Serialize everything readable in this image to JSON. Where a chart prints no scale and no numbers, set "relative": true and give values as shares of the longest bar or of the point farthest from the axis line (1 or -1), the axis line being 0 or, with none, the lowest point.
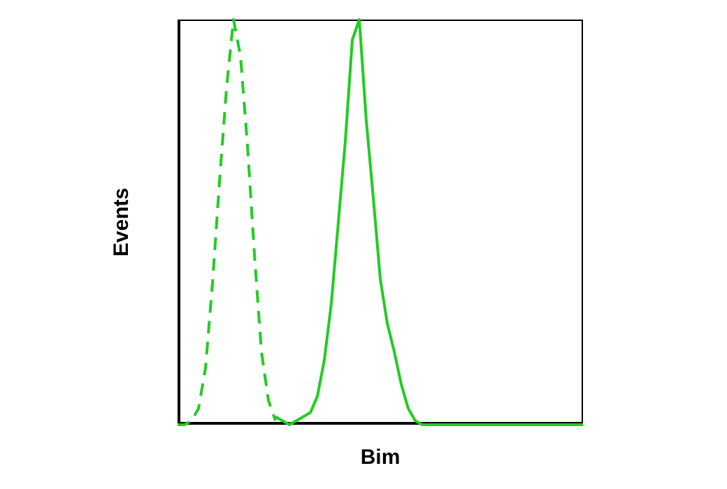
{
  "chart_data": {
    "type": "line",
    "relative": true,
    "xlabel": "Bim",
    "ylabel": "Events",
    "marker": "none",
    "legend": false,
    "grid": false,
    "categories": [
      null,
      null,
      null,
      null,
      null,
      null,
      null,
      null,
      null,
      null,
      null,
      null,
      null,
      null,
      null,
      null,
      null,
      null,
      null,
      null,
      null,
      null,
      null,
      null,
      null,
      null,
      null,
      null,
      null,
      null,
      null,
      null,
      null,
      null,
      null,
      null,
      null,
      null,
      null,
      null,
      null,
      null,
      null,
      null,
      null,
      null,
      null,
      null,
      null,
      null,
      null,
      null,
      null,
      null,
      null,
      null,
      null,
      null,
      null
    ],
    "series": [
      {
        "color": "#22cc22",
        "line_style": "dashed",
        "values": [
          0,
          0,
          0.01,
          0.04,
          0.14,
          0.35,
          0.6,
          0.83,
          1,
          0.91,
          0.69,
          0.42,
          0.18,
          0.06,
          0.01,
          null,
          null,
          null,
          null,
          null,
          null,
          null,
          null,
          null,
          null,
          null,
          null,
          null,
          null,
          null,
          null,
          null,
          null,
          null,
          null,
          null,
          null,
          null,
          null,
          null,
          null,
          null,
          null,
          null,
          null,
          null,
          null,
          null,
          null,
          null,
          null,
          null,
          null,
          null,
          null,
          null,
          null,
          null,
          null
        ]
      },
      {
        "color": "#22cc22",
        "line_style": "solid",
        "values": [
          null,
          null,
          null,
          null,
          null,
          null,
          null,
          null,
          null,
          null,
          null,
          null,
          null,
          null,
          0.02,
          0.01,
          0,
          0.01,
          0.02,
          0.03,
          0.07,
          0.16,
          0.3,
          0.5,
          0.7,
          0.95,
          1,
          0.75,
          0.56,
          0.36,
          0.25,
          0.18,
          0.1,
          0.04,
          0.01,
          0,
          0,
          0,
          0,
          0,
          0,
          0,
          0,
          0,
          0,
          0,
          0,
          0,
          0,
          0,
          0,
          0,
          0,
          0,
          0,
          0,
          0,
          0,
          0
        ]
      }
    ]
  }
}
